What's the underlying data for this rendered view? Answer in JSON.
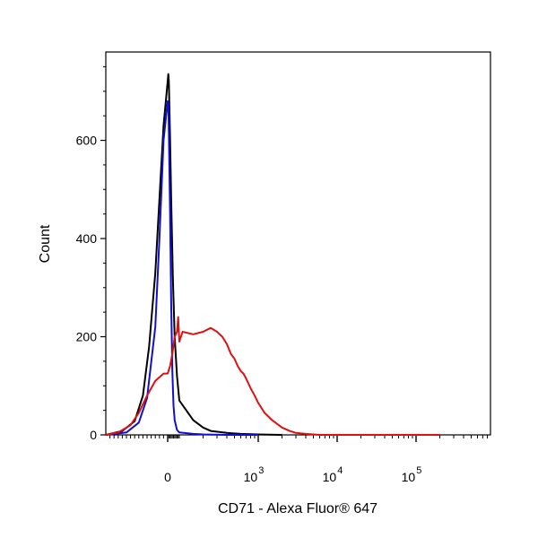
{
  "chart_data": {
    "type": "line",
    "xlabel": "CD71 - Alexa Fluor® 647",
    "ylabel": "Count",
    "x_scale": "biexponential",
    "xlim": [
      -150,
      200000
    ],
    "ylim": [
      0,
      780
    ],
    "y_ticks": [
      {
        "value": 0,
        "label": "0"
      },
      {
        "value": 200,
        "label": "200"
      },
      {
        "value": 400,
        "label": "400"
      },
      {
        "value": 600,
        "label": "600"
      }
    ],
    "x_ticks": [
      {
        "value": 0,
        "base": "0",
        "exp": ""
      },
      {
        "value": 1000,
        "base": "10",
        "exp": "3"
      },
      {
        "value": 10000,
        "base": "10",
        "exp": "4"
      },
      {
        "value": 100000,
        "base": "10",
        "exp": "5"
      }
    ],
    "grid": false,
    "legend": "none",
    "series": [
      {
        "color": "#000000",
        "x": [
          -150,
          -110,
          -80,
          -60,
          -45,
          -30,
          -20,
          -10,
          0,
          5,
          10,
          20,
          30,
          45,
          60,
          80,
          100,
          150,
          200,
          250,
          400,
          600,
          1000,
          2000
        ],
        "y": [
          0,
          8,
          28,
          80,
          180,
          330,
          480,
          630,
          720,
          735,
          720,
          610,
          480,
          320,
          200,
          120,
          70,
          30,
          15,
          8,
          4,
          2,
          1,
          0
        ]
      },
      {
        "color": "#1010d0",
        "x": [
          -150,
          -100,
          -70,
          -50,
          -30,
          -20,
          -10,
          0,
          5,
          10,
          20,
          30,
          40,
          50,
          60,
          80,
          100,
          150,
          200,
          400,
          1000
        ],
        "y": [
          0,
          5,
          25,
          75,
          220,
          400,
          600,
          680,
          675,
          620,
          460,
          270,
          130,
          60,
          30,
          10,
          5,
          2,
          1,
          0,
          0
        ]
      },
      {
        "color": "#e01010",
        "x": [
          -150,
          -120,
          -90,
          -70,
          -50,
          -30,
          -10,
          0,
          20,
          40,
          60,
          80,
          90,
          100,
          110,
          150,
          200,
          250,
          300,
          350,
          400,
          450,
          500,
          550,
          600,
          650,
          700,
          800,
          900,
          1000,
          1200,
          1500,
          2000,
          2500,
          3000,
          4000,
          5000,
          6000,
          10000,
          20000,
          200000
        ],
        "y": [
          0,
          5,
          20,
          45,
          80,
          110,
          125,
          125,
          140,
          165,
          200,
          210,
          240,
          190,
          210,
          205,
          210,
          218,
          210,
          200,
          185,
          165,
          155,
          140,
          130,
          125,
          115,
          95,
          80,
          65,
          45,
          30,
          15,
          8,
          4,
          2,
          1,
          0,
          0,
          0,
          0
        ]
      }
    ]
  }
}
